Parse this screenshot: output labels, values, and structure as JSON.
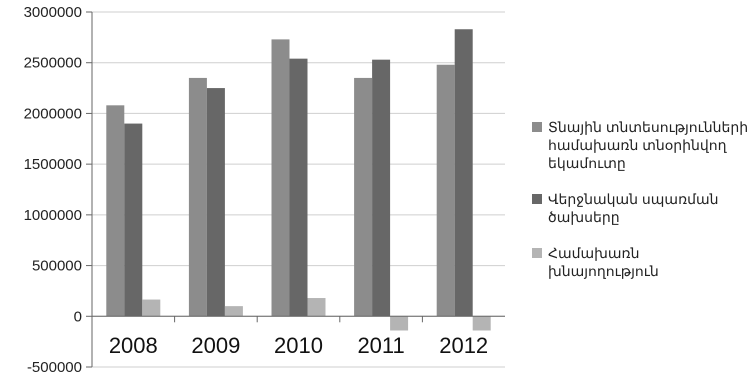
{
  "chart_data": {
    "type": "bar",
    "title": "",
    "xlabel": "",
    "ylabel": "",
    "categories": [
      "2008",
      "2009",
      "2010",
      "2011",
      "2012"
    ],
    "ylim": [
      -500000,
      3000000
    ],
    "yticks": [
      {
        "value": 3000000,
        "label": "3000000"
      },
      {
        "value": 2500000,
        "label": "2500000"
      },
      {
        "value": 2000000,
        "label": "2000000"
      },
      {
        "value": 1500000,
        "label": "1500000"
      },
      {
        "value": 1000000,
        "label": "1000000"
      },
      {
        "value": 500000,
        "label": "500000"
      },
      {
        "value": 0,
        "label": "0"
      },
      {
        "value": -500000,
        "label": "-500000"
      }
    ],
    "grid": true,
    "legend_position": "right",
    "series": [
      {
        "name": "Տնային տնտեսությունների համախառն տնօրինվող եկամուտը",
        "values": [
          2080000,
          2350000,
          2730000,
          2350000,
          2480000
        ],
        "color": "#8c8c8c"
      },
      {
        "name": "Վերջնական սպառման ծախսերը",
        "values": [
          1900000,
          2250000,
          2540000,
          2530000,
          2830000
        ],
        "color": "#676767"
      },
      {
        "name": "Համախառն խնայողություն",
        "values": [
          165000,
          100000,
          180000,
          -140000,
          -140000
        ],
        "color": "#b4b4b4"
      }
    ]
  }
}
